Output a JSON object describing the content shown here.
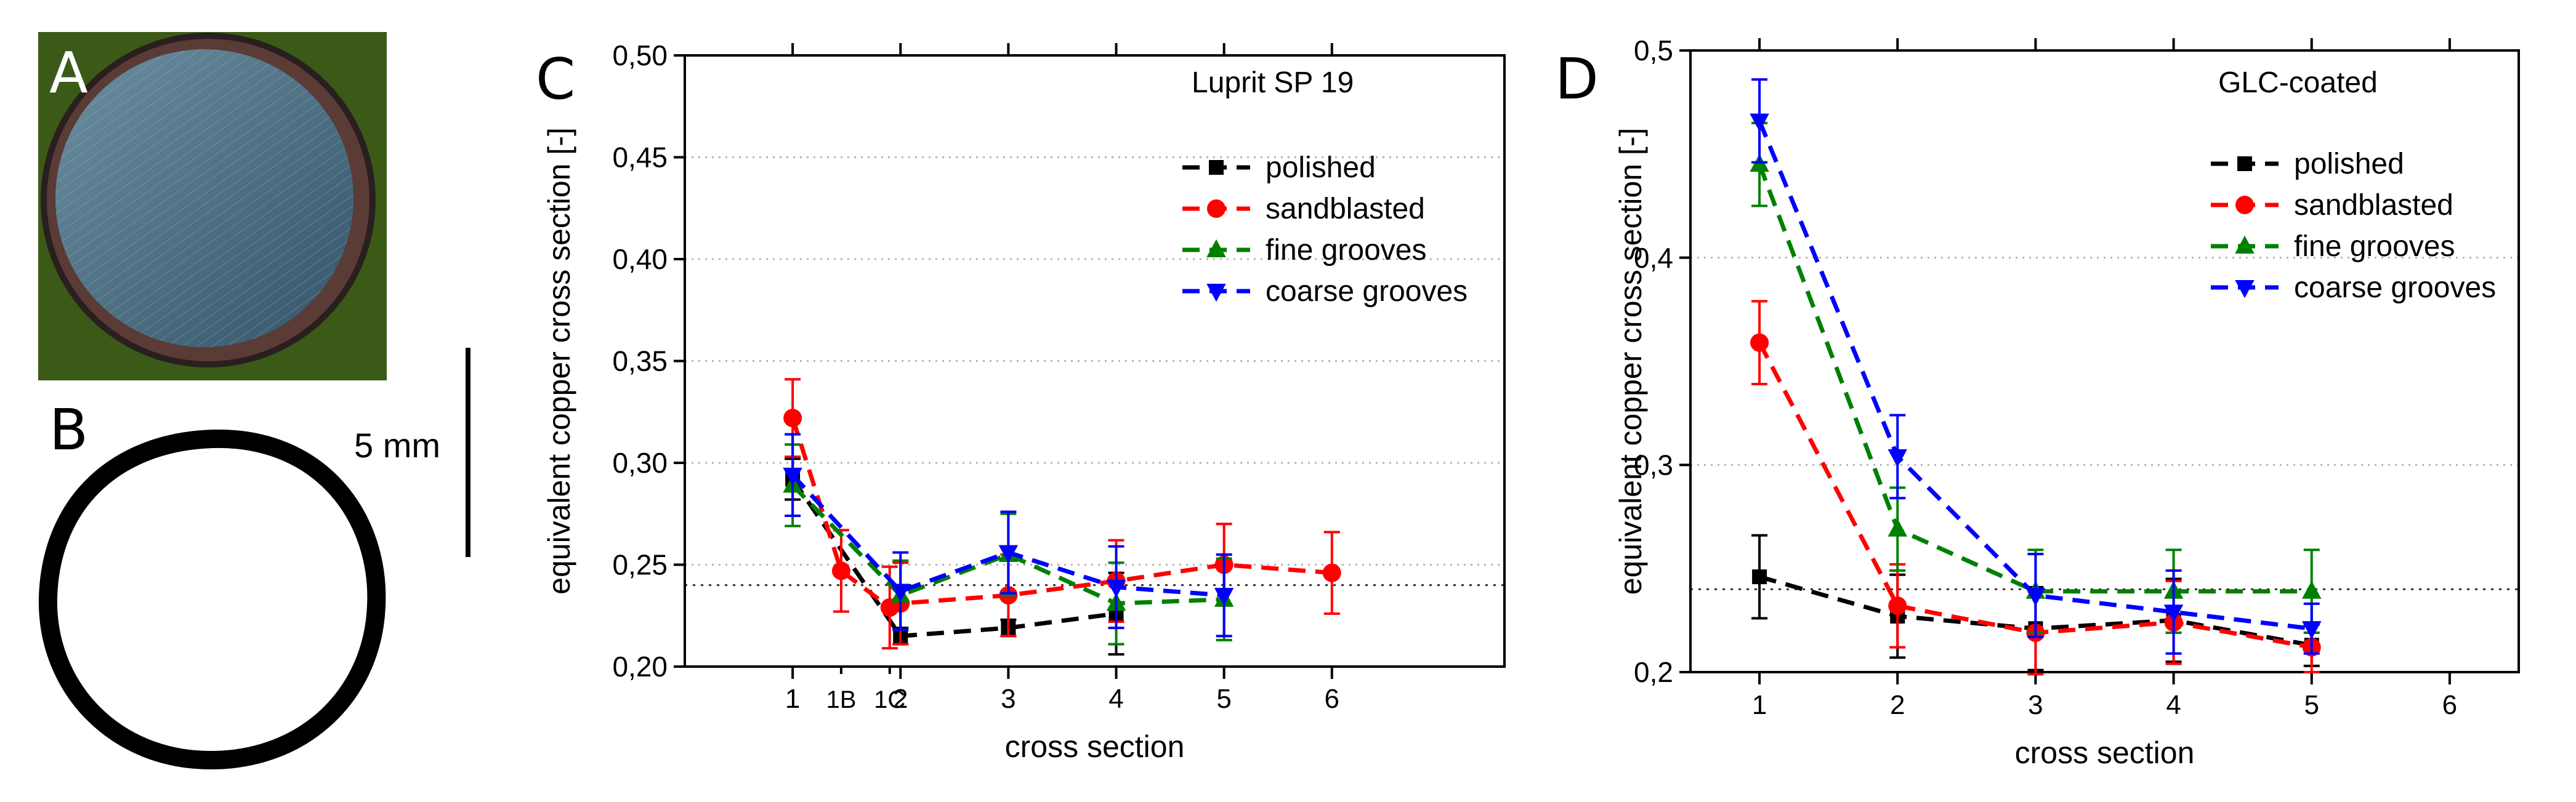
{
  "panels": {
    "a": {
      "label": "A"
    },
    "b": {
      "label": "B"
    },
    "c": {
      "label": "C"
    },
    "d": {
      "label": "D"
    }
  },
  "scale_bar": {
    "label": "5 mm"
  },
  "colors": {
    "polished": "#000000",
    "sandblasted": "#ff0000",
    "fine_grooves": "#008000",
    "coarse_grooves": "#0000ff",
    "photo_bg": "#3d5c1a",
    "photo_disc": "#4d6e82"
  },
  "icons": {
    "photo": "sample-photo",
    "ring": "cross-section-ring",
    "scale": "scale-bar"
  },
  "chart_data": [
    {
      "type": "line",
      "panel": "C",
      "title": "Luprit SP 19",
      "xlabel": "cross section",
      "ylabel": "equivalent copper cross section [-]",
      "xlim": [
        0,
        7.6
      ],
      "ylim": [
        0.2,
        0.5
      ],
      "yticks": [
        0.2,
        0.25,
        0.3,
        0.35,
        0.4,
        0.45,
        0.5
      ],
      "yticklabels": [
        "0,20",
        "0,25",
        "0,30",
        "0,35",
        "0,40",
        "0,45",
        "0,50"
      ],
      "xticks": [
        1,
        1.45,
        1.9,
        2,
        3,
        4,
        5,
        6
      ],
      "xticklabels": [
        "1",
        "1B",
        "1C",
        "2",
        "3",
        "4",
        "5",
        "6"
      ],
      "major_xticks": [
        1,
        2,
        3,
        4,
        5,
        6
      ],
      "reference_line": 0.24,
      "grid": "horizontal dotted",
      "legend": "top-right",
      "series": [
        {
          "key": "polished",
          "name": "polished",
          "marker": "square",
          "x": [
            1,
            2,
            3,
            4
          ],
          "y": [
            0.292,
            0.215,
            0.219,
            0.226
          ],
          "err": [
            0.01,
            0.004,
            0.004,
            0.02
          ]
        },
        {
          "key": "sandblasted",
          "name": "sandblasted",
          "marker": "circle",
          "x": [
            1,
            1.45,
            1.9,
            2,
            3,
            4,
            5,
            6
          ],
          "y": [
            0.322,
            0.247,
            0.229,
            0.231,
            0.235,
            0.242,
            0.25,
            0.246
          ],
          "err": [
            0.019,
            0.02,
            0.02,
            0.02,
            0.02,
            0.02,
            0.02,
            0.02
          ]
        },
        {
          "key": "fine_grooves",
          "name": "fine grooves",
          "marker": "triangle-up",
          "x": [
            1,
            2,
            3,
            4,
            5
          ],
          "y": [
            0.289,
            0.235,
            0.255,
            0.231,
            0.233
          ],
          "err": [
            0.02,
            0.017,
            0.02,
            0.02,
            0.02
          ]
        },
        {
          "key": "coarse_grooves",
          "name": "coarse grooves",
          "marker": "triangle-down",
          "x": [
            1,
            2,
            3,
            4,
            5
          ],
          "y": [
            0.294,
            0.237,
            0.256,
            0.239,
            0.235
          ],
          "err": [
            0.02,
            0.019,
            0.02,
            0.02,
            0.02
          ]
        }
      ]
    },
    {
      "type": "line",
      "panel": "D",
      "title": "GLC-coated",
      "xlabel": "cross section",
      "ylabel": "equivalent copper cross section [-]",
      "xlim": [
        0.5,
        6.5
      ],
      "ylim": [
        0.2,
        0.5
      ],
      "yticks": [
        0.2,
        0.3,
        0.4,
        0.5
      ],
      "yticklabels": [
        "0,2",
        "0,3",
        "0,4",
        "0,5"
      ],
      "xticks": [
        1,
        2,
        3,
        4,
        5,
        6
      ],
      "xticklabels": [
        "1",
        "2",
        "3",
        "4",
        "5",
        "6"
      ],
      "major_xticks": [
        1,
        2,
        3,
        4,
        5,
        6
      ],
      "reference_line": 0.24,
      "grid": "horizontal dotted",
      "legend": "top-right",
      "series": [
        {
          "key": "polished",
          "name": "polished",
          "marker": "square",
          "x": [
            1,
            2,
            3,
            4,
            5
          ],
          "y": [
            0.246,
            0.227,
            0.221,
            0.225,
            0.213
          ],
          "err": [
            0.02,
            0.02,
            0.02,
            0.02,
            0.01
          ]
        },
        {
          "key": "sandblasted",
          "name": "sandblasted",
          "marker": "circle",
          "x": [
            1,
            2,
            3,
            4,
            5
          ],
          "y": [
            0.359,
            0.232,
            0.219,
            0.224,
            0.212
          ],
          "err": [
            0.02,
            0.02,
            0.02,
            0.02,
            0.012
          ]
        },
        {
          "key": "fine_grooves",
          "name": "fine grooves",
          "marker": "triangle-up",
          "x": [
            1,
            2,
            3,
            4,
            5
          ],
          "y": [
            0.445,
            0.269,
            0.239,
            0.239,
            0.239
          ],
          "err": [
            0.02,
            0.02,
            0.02,
            0.02,
            0.02
          ]
        },
        {
          "key": "coarse_grooves",
          "name": "coarse grooves",
          "marker": "triangle-down",
          "x": [
            1,
            2,
            3,
            4,
            5
          ],
          "y": [
            0.466,
            0.304,
            0.237,
            0.229,
            0.221
          ],
          "err": [
            0.02,
            0.02,
            0.02,
            0.02,
            0.012
          ]
        }
      ]
    }
  ]
}
